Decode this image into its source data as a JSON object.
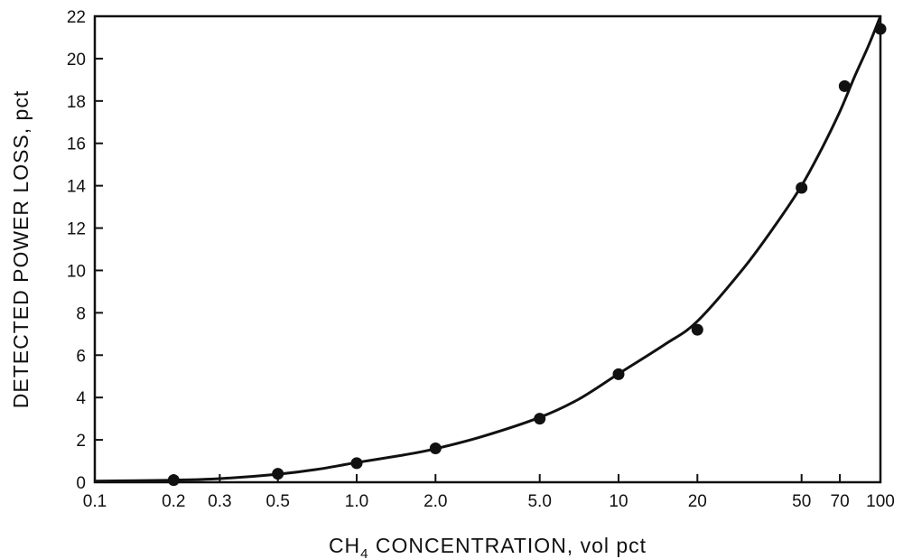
{
  "chart_data": {
    "type": "scatter",
    "title": "",
    "xlabel_main": "CH",
    "xlabel_sub": "4",
    "xlabel_rest": " CONCENTRATION, vol pct",
    "ylabel": "DETECTED POWER LOSS, pct",
    "x_scale": "log",
    "xlim": [
      0.1,
      100
    ],
    "ylim": [
      0,
      22
    ],
    "grid": false,
    "legend": "none",
    "x_ticks": [
      {
        "value": 0.1,
        "label": "0.1"
      },
      {
        "value": 0.2,
        "label": "0.2"
      },
      {
        "value": 0.3,
        "label": "0.3"
      },
      {
        "value": 0.5,
        "label": "0.5"
      },
      {
        "value": 1.0,
        "label": "1.0"
      },
      {
        "value": 2.0,
        "label": "2.0"
      },
      {
        "value": 5.0,
        "label": "5.0"
      },
      {
        "value": 10,
        "label": "10"
      },
      {
        "value": 20,
        "label": "20"
      },
      {
        "value": 50,
        "label": "50"
      },
      {
        "value": 70,
        "label": "70"
      },
      {
        "value": 100,
        "label": "100"
      }
    ],
    "y_ticks": [
      {
        "value": 0,
        "label": "0"
      },
      {
        "value": 2,
        "label": "2"
      },
      {
        "value": 4,
        "label": "4"
      },
      {
        "value": 6,
        "label": "6"
      },
      {
        "value": 8,
        "label": "8"
      },
      {
        "value": 10,
        "label": "10"
      },
      {
        "value": 12,
        "label": "12"
      },
      {
        "value": 14,
        "label": "14"
      },
      {
        "value": 16,
        "label": "16"
      },
      {
        "value": 18,
        "label": "18"
      },
      {
        "value": 20,
        "label": "20"
      },
      {
        "value": 22,
        "label": "22"
      }
    ],
    "series": [
      {
        "kind": "points",
        "x": [
          0.2,
          0.5,
          1.0,
          2.0,
          5.0,
          10,
          20,
          50,
          73,
          100
        ],
        "y": [
          0.1,
          0.4,
          0.9,
          1.6,
          3.0,
          5.1,
          7.2,
          13.9,
          18.7,
          21.4
        ]
      },
      {
        "kind": "fit-curve",
        "x": [
          0.1,
          0.2,
          0.3,
          0.5,
          0.7,
          1.0,
          1.5,
          2.0,
          3.0,
          5.0,
          7.0,
          10,
          15,
          20,
          30,
          40,
          50,
          60,
          70,
          80,
          90,
          100
        ],
        "y": [
          0.05,
          0.1,
          0.17,
          0.38,
          0.6,
          0.93,
          1.28,
          1.58,
          2.15,
          3.06,
          3.9,
          5.12,
          6.5,
          7.6,
          10.1,
          12.2,
          14.0,
          15.8,
          17.5,
          19.2,
          20.6,
          22.0
        ]
      }
    ],
    "colors": {
      "ink": "#111111",
      "background": "#ffffff"
    }
  }
}
